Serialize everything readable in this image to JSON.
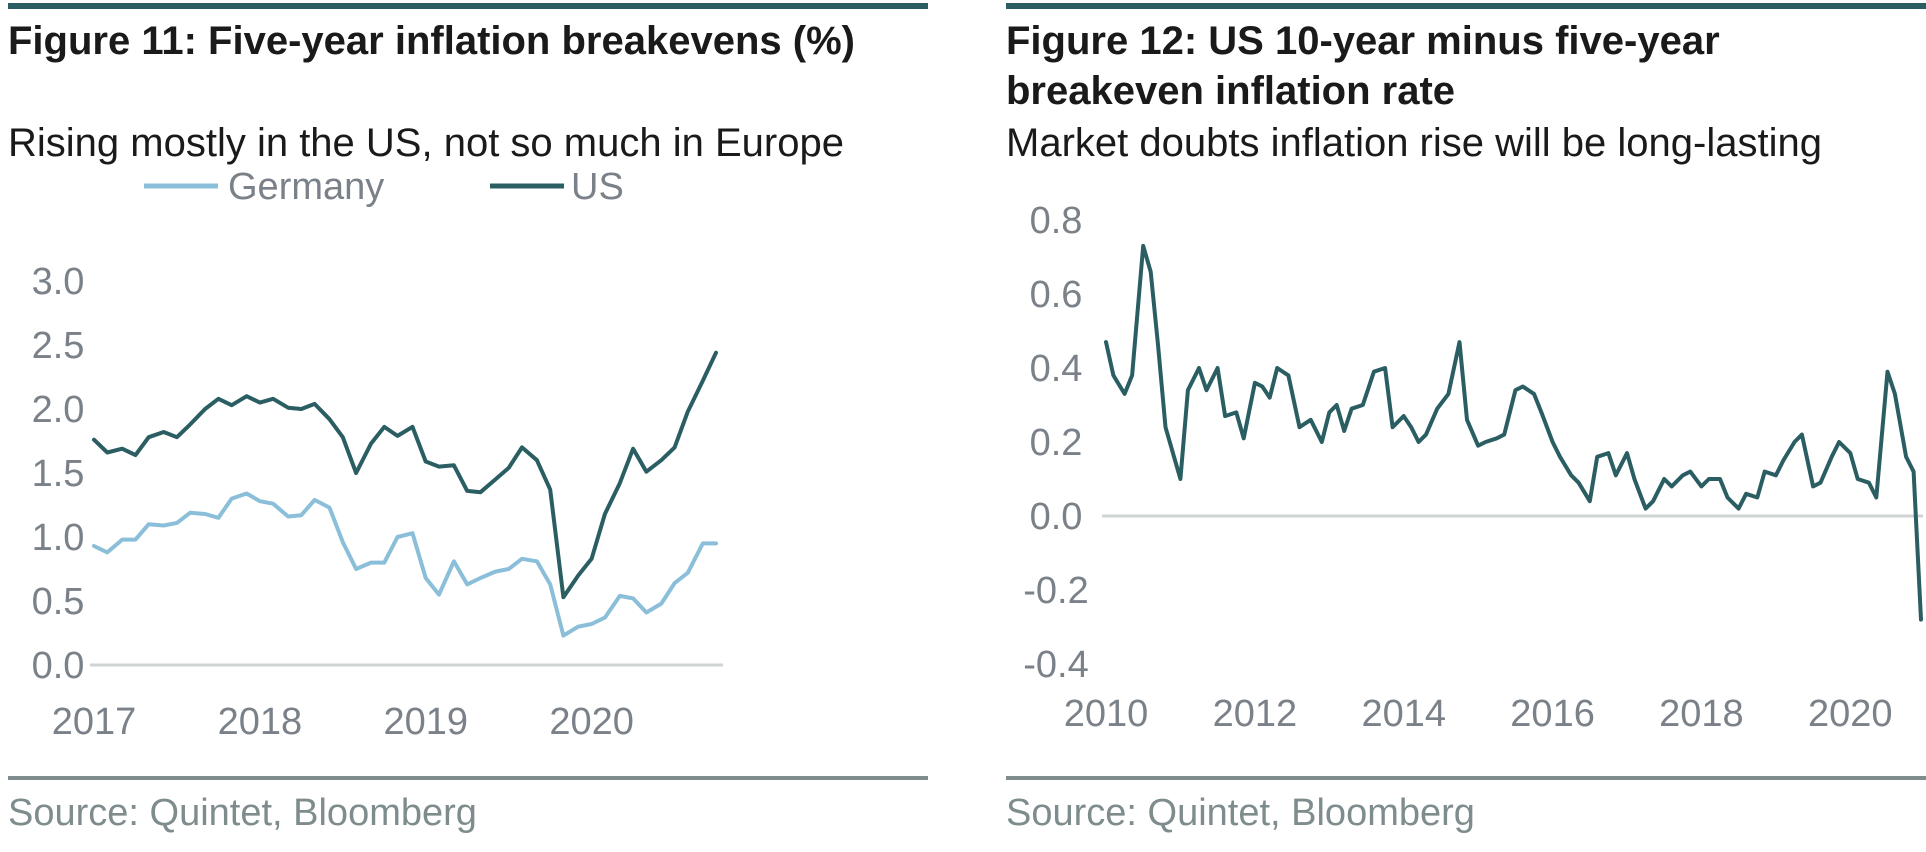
{
  "source_label": "Source: Quintet, Bloomberg",
  "chart_data": [
    {
      "type": "line",
      "title": "Figure 11: Five-year inflation breakevens (%)",
      "subtitle": "Rising mostly in the US, not so much in Europe",
      "xlabel": "",
      "ylabel": "",
      "ylim": [
        0,
        3.0
      ],
      "xlim": [
        2017,
        2020.78
      ],
      "yticks": [
        "0.0",
        "0.5",
        "1.0",
        "1.5",
        "2.0",
        "2.5",
        "3.0"
      ],
      "xticks": [
        "2017",
        "2018",
        "2019",
        "2020"
      ],
      "grid": false,
      "legend": "top",
      "series": [
        {
          "name": "Germany",
          "color": "#8bbfd9",
          "x": [
            2017.0,
            2017.08,
            2017.17,
            2017.25,
            2017.33,
            2017.42,
            2017.5,
            2017.58,
            2017.67,
            2017.75,
            2017.83,
            2017.92,
            2018.0,
            2018.08,
            2018.17,
            2018.25,
            2018.33,
            2018.42,
            2018.5,
            2018.58,
            2018.67,
            2018.75,
            2018.83,
            2018.92,
            2019.0,
            2019.08,
            2019.17,
            2019.25,
            2019.33,
            2019.42,
            2019.5,
            2019.58,
            2019.67,
            2019.75,
            2019.83,
            2019.92,
            2020.0,
            2020.08,
            2020.17,
            2020.25,
            2020.33,
            2020.42,
            2020.5,
            2020.58,
            2020.67,
            2020.75
          ],
          "values": [
            0.93,
            0.88,
            0.98,
            0.98,
            1.1,
            1.09,
            1.11,
            1.19,
            1.18,
            1.15,
            1.3,
            1.34,
            1.28,
            1.26,
            1.16,
            1.17,
            1.29,
            1.23,
            0.96,
            0.75,
            0.8,
            0.8,
            1.0,
            1.03,
            0.68,
            0.55,
            0.81,
            0.63,
            0.68,
            0.73,
            0.75,
            0.83,
            0.81,
            0.63,
            0.23,
            0.3,
            0.32,
            0.37,
            0.54,
            0.52,
            0.41,
            0.48,
            0.64,
            0.72,
            0.95,
            0.95
          ]
        },
        {
          "name": "US",
          "color": "#2a5e63",
          "x": [
            2017.0,
            2017.08,
            2017.17,
            2017.25,
            2017.33,
            2017.42,
            2017.5,
            2017.58,
            2017.67,
            2017.75,
            2017.83,
            2017.92,
            2018.0,
            2018.08,
            2018.17,
            2018.25,
            2018.33,
            2018.42,
            2018.5,
            2018.58,
            2018.67,
            2018.75,
            2018.83,
            2018.92,
            2019.0,
            2019.08,
            2019.17,
            2019.25,
            2019.33,
            2019.42,
            2019.5,
            2019.58,
            2019.67,
            2019.75,
            2019.83,
            2019.92,
            2020.0,
            2020.08,
            2020.17,
            2020.25,
            2020.33,
            2020.42,
            2020.5,
            2020.58,
            2020.67,
            2020.75
          ],
          "values": [
            1.76,
            1.66,
            1.69,
            1.64,
            1.78,
            1.82,
            1.78,
            1.88,
            2.0,
            2.08,
            2.03,
            2.1,
            2.05,
            2.08,
            2.01,
            2.0,
            2.04,
            1.92,
            1.78,
            1.5,
            1.73,
            1.86,
            1.79,
            1.86,
            1.59,
            1.55,
            1.56,
            1.36,
            1.35,
            1.45,
            1.54,
            1.7,
            1.6,
            1.37,
            0.53,
            0.7,
            0.83,
            1.18,
            1.42,
            1.69,
            1.51,
            1.6,
            1.7,
            1.98,
            2.22,
            2.44
          ]
        }
      ]
    },
    {
      "type": "line",
      "title": "Figure 12: US 10-year minus five-year breakeven inflation rate",
      "subtitle": "Market doubts inflation rise will be long-lasting",
      "xlabel": "",
      "ylabel": "",
      "ylim": [
        -0.4,
        0.8
      ],
      "xlim": [
        2010,
        2020.95
      ],
      "yticks": [
        "0.8",
        "0.6",
        "0.4",
        "0.2",
        "0.0",
        "-0.2",
        "-0.4"
      ],
      "xticks": [
        "2010",
        "2012",
        "2014",
        "2016",
        "2018",
        "2020"
      ],
      "grid": false,
      "legend": "none",
      "series": [
        {
          "name": "",
          "color": "#2a5e63",
          "x": [
            2010.0,
            2010.1,
            2010.25,
            2010.35,
            2010.5,
            2010.6,
            2010.7,
            2010.8,
            2011.0,
            2011.1,
            2011.25,
            2011.35,
            2011.5,
            2011.6,
            2011.75,
            2011.85,
            2012.0,
            2012.1,
            2012.2,
            2012.3,
            2012.45,
            2012.6,
            2012.75,
            2012.9,
            2013.0,
            2013.1,
            2013.2,
            2013.3,
            2013.45,
            2013.6,
            2013.75,
            2013.85,
            2014.0,
            2014.1,
            2014.2,
            2014.3,
            2014.45,
            2014.6,
            2014.75,
            2014.85,
            2015.0,
            2015.1,
            2015.25,
            2015.35,
            2015.5,
            2015.6,
            2015.75,
            2015.85,
            2016.0,
            2016.1,
            2016.25,
            2016.35,
            2016.5,
            2016.6,
            2016.75,
            2016.85,
            2017.0,
            2017.1,
            2017.25,
            2017.35,
            2017.5,
            2017.6,
            2017.75,
            2017.85,
            2018.0,
            2018.1,
            2018.25,
            2018.35,
            2018.5,
            2018.6,
            2018.75,
            2018.85,
            2019.0,
            2019.1,
            2019.25,
            2019.35,
            2019.5,
            2019.6,
            2019.75,
            2019.85,
            2020.0,
            2020.1,
            2020.25,
            2020.35,
            2020.5,
            2020.6,
            2020.75,
            2020.85,
            2020.95
          ],
          "values": [
            0.47,
            0.38,
            0.33,
            0.38,
            0.73,
            0.66,
            0.46,
            0.24,
            0.1,
            0.34,
            0.4,
            0.34,
            0.4,
            0.27,
            0.28,
            0.21,
            0.36,
            0.35,
            0.32,
            0.4,
            0.38,
            0.24,
            0.26,
            0.2,
            0.28,
            0.3,
            0.23,
            0.29,
            0.3,
            0.39,
            0.4,
            0.24,
            0.27,
            0.24,
            0.2,
            0.22,
            0.29,
            0.33,
            0.47,
            0.26,
            0.19,
            0.2,
            0.21,
            0.22,
            0.34,
            0.35,
            0.33,
            0.28,
            0.2,
            0.16,
            0.11,
            0.09,
            0.04,
            0.16,
            0.17,
            0.11,
            0.17,
            0.1,
            0.02,
            0.04,
            0.1,
            0.08,
            0.11,
            0.12,
            0.08,
            0.1,
            0.1,
            0.05,
            0.02,
            0.06,
            0.05,
            0.12,
            0.11,
            0.15,
            0.2,
            0.22,
            0.08,
            0.09,
            0.16,
            0.2,
            0.17,
            0.1,
            0.09,
            0.05,
            0.39,
            0.33,
            0.16,
            0.12,
            -0.28
          ]
        }
      ]
    }
  ]
}
